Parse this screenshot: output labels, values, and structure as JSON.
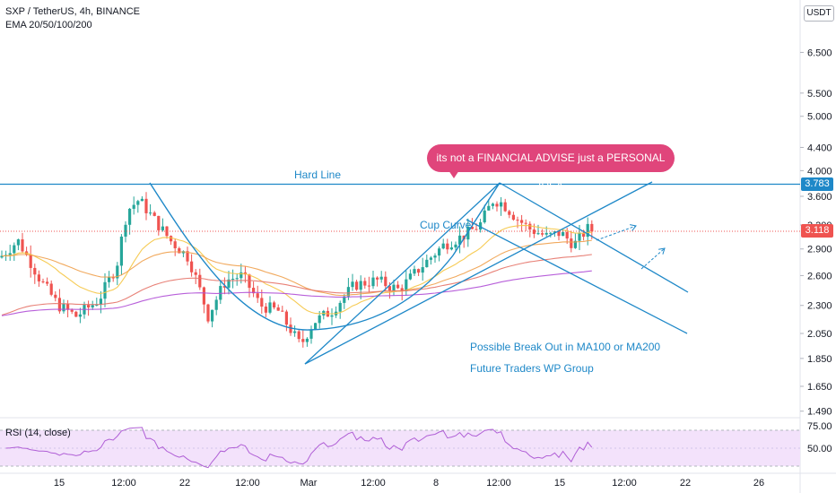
{
  "header": {
    "symbol_line": "SXP / TetherUS, 4h, BINANCE",
    "indicator_line": "EMA 20/50/100/200"
  },
  "currency_button": "USDT",
  "annotations": {
    "callout": "its not a FINANCIAL ADVISE just a PERSONAL IDEA",
    "hard_line": "Hard Line",
    "cup_curve": "Cup Curve",
    "breakout": "Possible Break Out in MA100 or MA200",
    "group": "Future Traders WP Group"
  },
  "price_tags": {
    "hard_line": "3.783",
    "last_price": "3.118"
  },
  "colors": {
    "up": "#26a69a",
    "down": "#ef5350",
    "drawing": "#1e88c8",
    "callout": "#e0457b",
    "ema20": "#f5c542",
    "ema50": "#f0a04b",
    "ema100": "#e57368",
    "ema200": "#b04fd6",
    "rsi": "#b05fd6",
    "rsi_band": "#f3e2fb"
  },
  "chart_data": {
    "type": "candlestick",
    "scale": "log",
    "y_ticks": [
      "6.500",
      "5.500",
      "5.000",
      "4.400",
      "4.000",
      "3.600",
      "3.200",
      "2.900",
      "2.600",
      "2.300",
      "2.050",
      "1.850",
      "1.650",
      "1.490"
    ],
    "x_ticks": [
      "15",
      "12:00",
      "22",
      "12:00",
      "Mar",
      "12:00",
      "8",
      "12:00",
      "15",
      "12:00",
      "22",
      "26"
    ],
    "ylim": [
      1.45,
      7.2
    ],
    "hard_line_price": 3.783,
    "last_price": 3.118,
    "rsi": {
      "label": "RSI (14, close)",
      "ticks": [
        "75.00",
        "50.00"
      ],
      "band": [
        30,
        70
      ]
    }
  }
}
